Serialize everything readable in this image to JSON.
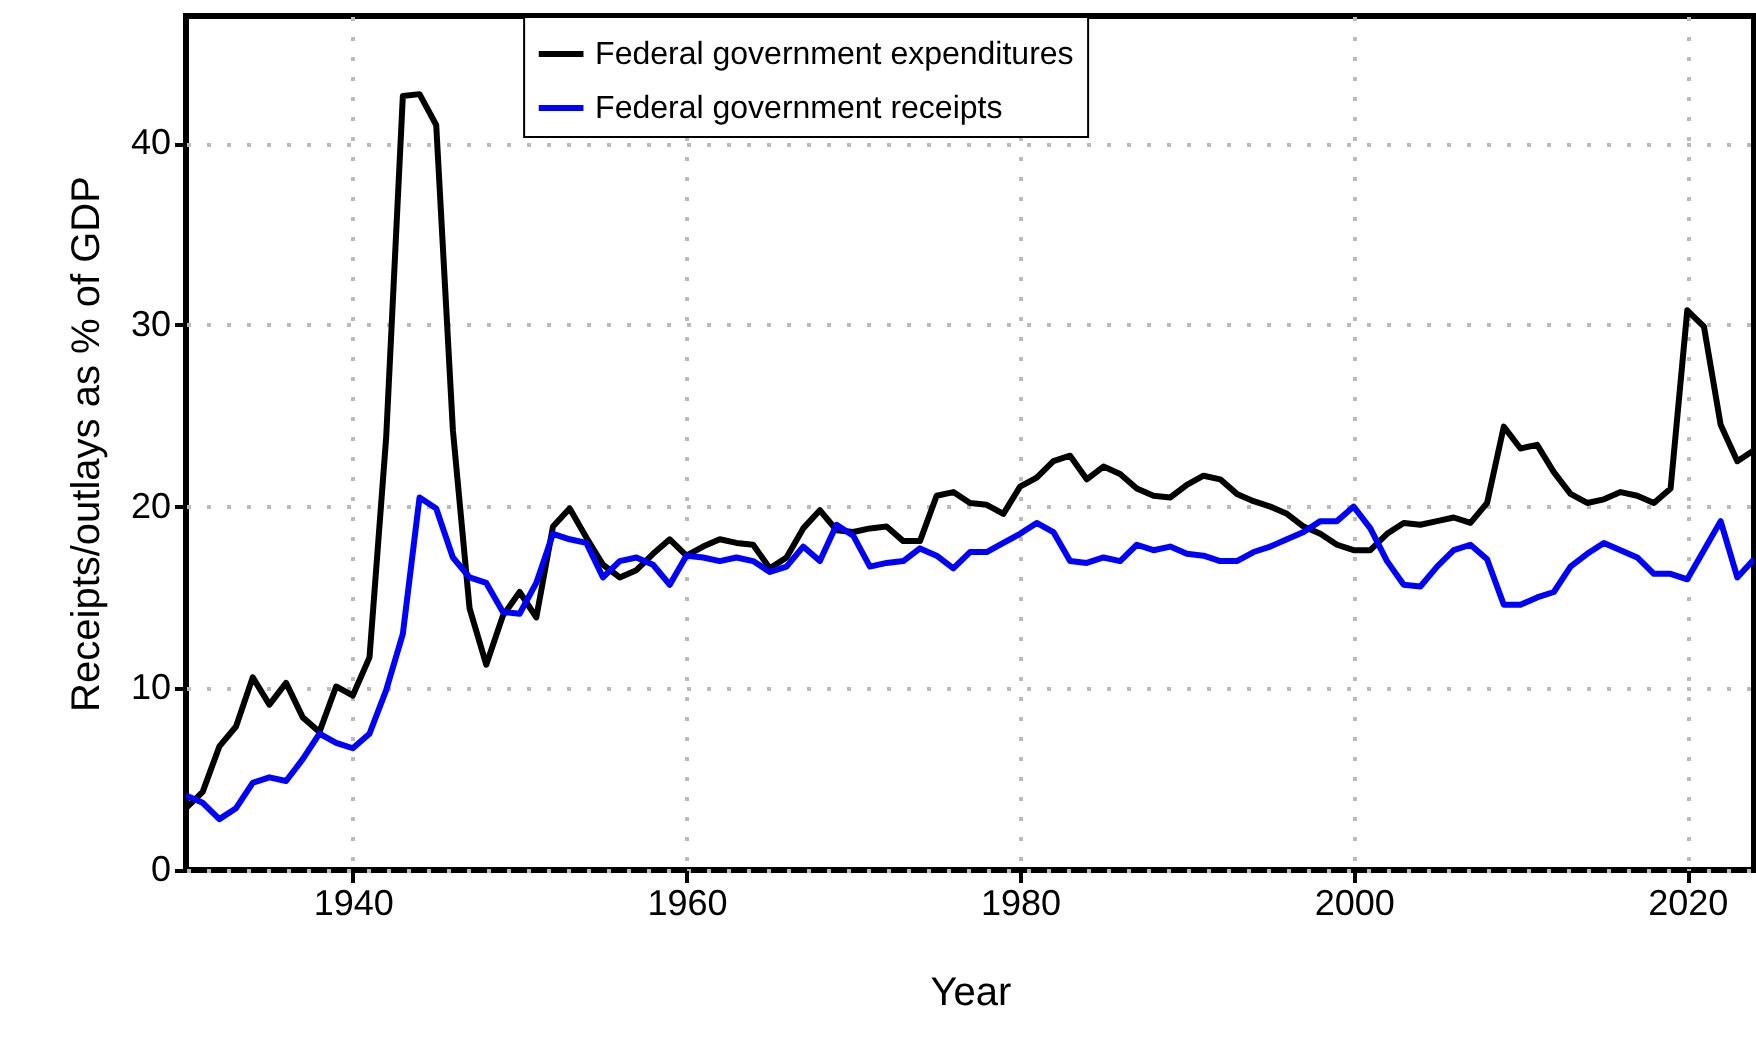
{
  "chart_data": {
    "type": "line",
    "xlabel": "Year",
    "ylabel": "Receipts/outlays as % of GDP",
    "x": [
      1930,
      1931,
      1932,
      1933,
      1934,
      1935,
      1936,
      1937,
      1938,
      1939,
      1940,
      1941,
      1942,
      1943,
      1944,
      1945,
      1946,
      1947,
      1948,
      1949,
      1950,
      1951,
      1952,
      1953,
      1954,
      1955,
      1956,
      1957,
      1958,
      1959,
      1960,
      1961,
      1962,
      1963,
      1964,
      1965,
      1966,
      1967,
      1968,
      1969,
      1970,
      1971,
      1972,
      1973,
      1974,
      1975,
      1976,
      1977,
      1978,
      1979,
      1980,
      1981,
      1982,
      1983,
      1984,
      1985,
      1986,
      1987,
      1988,
      1989,
      1990,
      1991,
      1992,
      1993,
      1994,
      1995,
      1996,
      1997,
      1998,
      1999,
      2000,
      2001,
      2002,
      2003,
      2004,
      2005,
      2006,
      2007,
      2008,
      2009,
      2010,
      2011,
      2012,
      2013,
      2014,
      2015,
      2016,
      2017,
      2018,
      2019,
      2020,
      2021,
      2022,
      2023,
      2024
    ],
    "series": [
      {
        "name": "Federal government expenditures",
        "color": "#000000",
        "values": [
          3.4,
          4.3,
          6.8,
          7.9,
          10.6,
          9.1,
          10.3,
          8.4,
          7.6,
          10.1,
          9.6,
          11.7,
          23.8,
          42.6,
          42.7,
          41.0,
          24.2,
          14.4,
          11.3,
          14.0,
          15.3,
          13.9,
          18.9,
          19.9,
          18.3,
          16.8,
          16.1,
          16.5,
          17.4,
          18.2,
          17.3,
          17.8,
          18.2,
          18.0,
          17.9,
          16.6,
          17.2,
          18.8,
          19.8,
          18.7,
          18.6,
          18.8,
          18.9,
          18.1,
          18.1,
          20.6,
          20.8,
          20.2,
          20.1,
          19.6,
          21.1,
          21.6,
          22.5,
          22.8,
          21.5,
          22.2,
          21.8,
          21.0,
          20.6,
          20.5,
          21.2,
          21.7,
          21.5,
          20.7,
          20.3,
          20.0,
          19.6,
          18.9,
          18.5,
          17.9,
          17.6,
          17.6,
          18.5,
          19.1,
          19.0,
          19.2,
          19.4,
          19.1,
          20.2,
          24.4,
          23.2,
          23.4,
          21.9,
          20.7,
          20.2,
          20.4,
          20.8,
          20.6,
          20.2,
          21.0,
          30.8,
          29.9,
          24.5,
          22.5,
          23.1
        ]
      },
      {
        "name": "Federal government receipts",
        "color": "#0000ff",
        "values": [
          4.1,
          3.7,
          2.8,
          3.4,
          4.8,
          5.1,
          4.9,
          6.1,
          7.5,
          7.0,
          6.7,
          7.5,
          9.9,
          13.0,
          20.5,
          19.9,
          17.2,
          16.1,
          15.8,
          14.2,
          14.1,
          15.8,
          18.5,
          18.2,
          18.0,
          16.1,
          17.0,
          17.2,
          16.8,
          15.7,
          17.3,
          17.2,
          17.0,
          17.2,
          17.0,
          16.4,
          16.7,
          17.8,
          17.0,
          19.0,
          18.4,
          16.7,
          16.9,
          17.0,
          17.7,
          17.3,
          16.6,
          17.5,
          17.5,
          18.0,
          18.5,
          19.1,
          18.6,
          17.0,
          16.9,
          17.2,
          17.0,
          17.9,
          17.6,
          17.8,
          17.4,
          17.3,
          17.0,
          17.0,
          17.5,
          17.8,
          18.2,
          18.6,
          19.2,
          19.2,
          20.0,
          18.8,
          17.0,
          15.7,
          15.6,
          16.7,
          17.6,
          17.9,
          17.1,
          14.6,
          14.6,
          15.0,
          15.3,
          16.7,
          17.4,
          18.0,
          17.6,
          17.2,
          16.3,
          16.3,
          16.0,
          17.6,
          19.2,
          16.1,
          17.1
        ]
      }
    ],
    "xlim": [
      1930,
      2024
    ],
    "ylim": [
      0,
      47
    ],
    "xticks": [
      1940,
      1960,
      1980,
      2000,
      2020
    ],
    "yticks": [
      0,
      10,
      20,
      30,
      40
    ],
    "grid": true,
    "legend": "top",
    "line_style": "solid",
    "marker": "none"
  }
}
